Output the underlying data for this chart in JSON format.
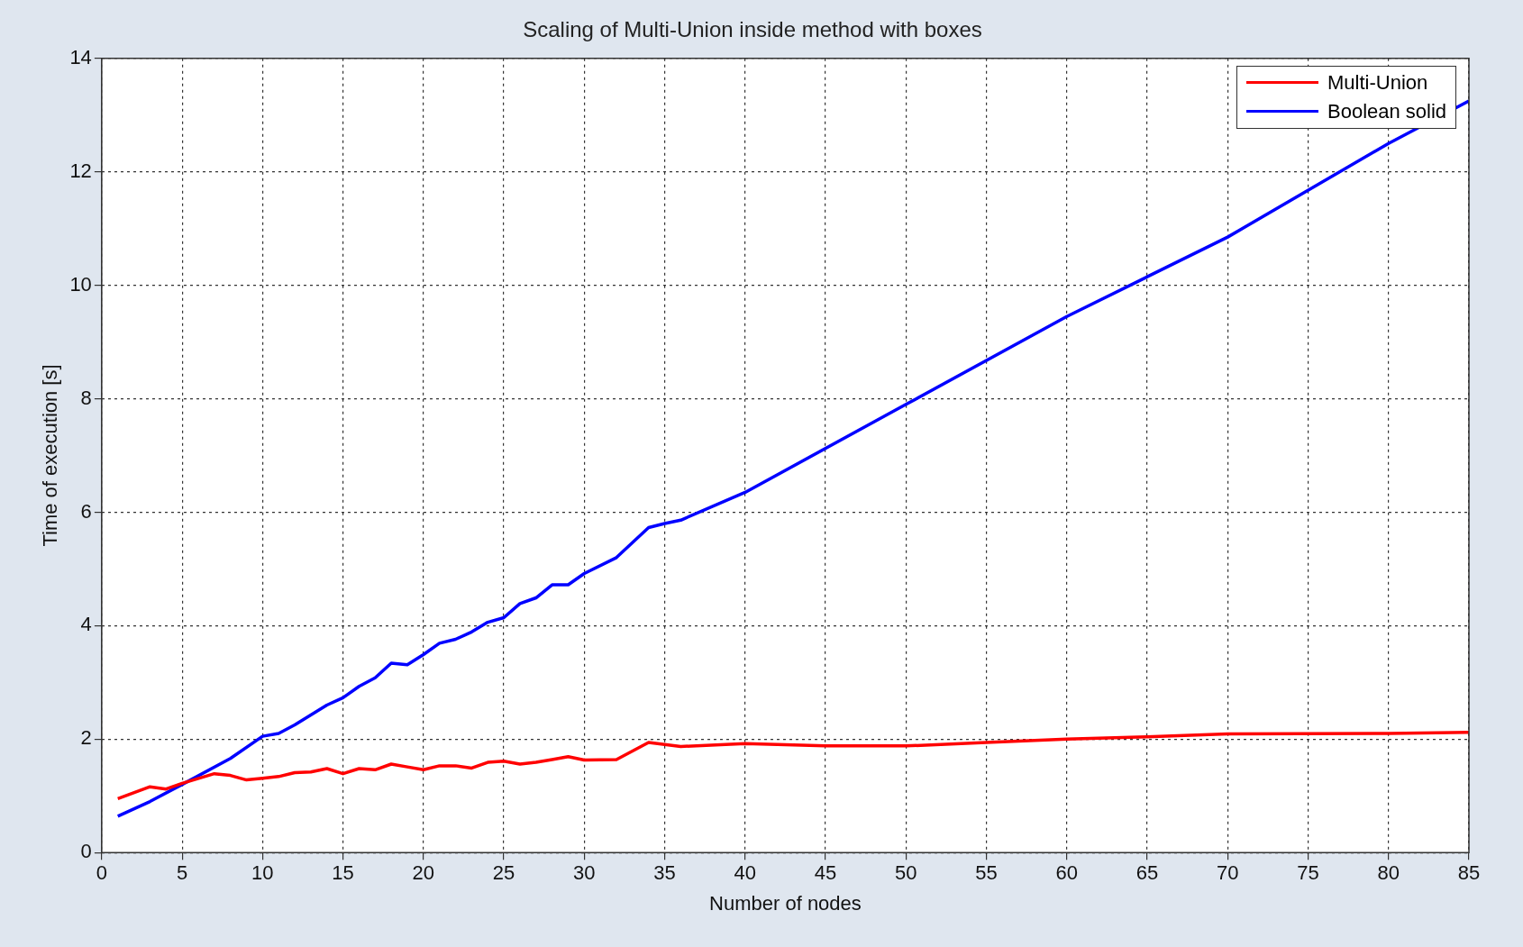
{
  "chart_data": {
    "type": "line",
    "title": "Scaling of Multi-Union inside method with boxes",
    "xlabel": "Number of nodes",
    "ylabel": "Time of execution [s]",
    "xlim": [
      0,
      85
    ],
    "xticks": [
      0,
      5,
      10,
      15,
      20,
      25,
      30,
      35,
      40,
      45,
      50,
      55,
      60,
      65,
      70,
      75,
      80,
      85
    ],
    "ylim": [
      0,
      14
    ],
    "yticks": [
      0,
      2,
      4,
      6,
      8,
      10,
      12,
      14
    ],
    "grid": true,
    "legend": "top right",
    "line_style": "solid",
    "marker": "none",
    "series": [
      {
        "name": "Multi-Union",
        "color": "#ff0000",
        "x": [
          1,
          3,
          4,
          5,
          7,
          8,
          9,
          10,
          11,
          12,
          13,
          14,
          15,
          16,
          17,
          18,
          19,
          20,
          21,
          22,
          23,
          24,
          25,
          26,
          27,
          28,
          29,
          30,
          32,
          34,
          36,
          40,
          45,
          50,
          55,
          60,
          65,
          70,
          80,
          85
        ],
        "values": [
          0.95,
          1.16,
          1.12,
          1.22,
          1.39,
          1.36,
          1.28,
          1.31,
          1.34,
          1.41,
          1.42,
          1.48,
          1.39,
          1.48,
          1.46,
          1.56,
          1.51,
          1.46,
          1.53,
          1.53,
          1.49,
          1.59,
          1.61,
          1.56,
          1.59,
          1.64,
          1.69,
          1.63,
          1.64,
          1.94,
          1.87,
          1.92,
          1.88,
          1.88,
          1.94,
          2.0,
          2.04,
          2.09,
          2.1,
          2.12
        ]
      },
      {
        "name": "Boolean solid",
        "color": "#0000ff",
        "x": [
          1,
          3,
          5,
          8,
          10,
          11,
          12,
          14,
          15,
          16,
          17,
          18,
          19,
          20,
          21,
          22,
          23,
          24,
          25,
          26,
          27,
          28,
          29,
          30,
          32,
          34,
          35,
          36,
          40,
          50,
          60,
          65,
          70,
          80,
          85
        ],
        "values": [
          0.64,
          0.9,
          1.2,
          1.66,
          2.05,
          2.1,
          2.25,
          2.6,
          2.73,
          2.93,
          3.08,
          3.34,
          3.31,
          3.49,
          3.69,
          3.76,
          3.89,
          4.06,
          4.14,
          4.39,
          4.49,
          4.72,
          4.72,
          4.92,
          5.2,
          5.73,
          5.8,
          5.86,
          6.35,
          7.9,
          9.45,
          10.15,
          10.85,
          12.5,
          13.25
        ]
      }
    ]
  }
}
